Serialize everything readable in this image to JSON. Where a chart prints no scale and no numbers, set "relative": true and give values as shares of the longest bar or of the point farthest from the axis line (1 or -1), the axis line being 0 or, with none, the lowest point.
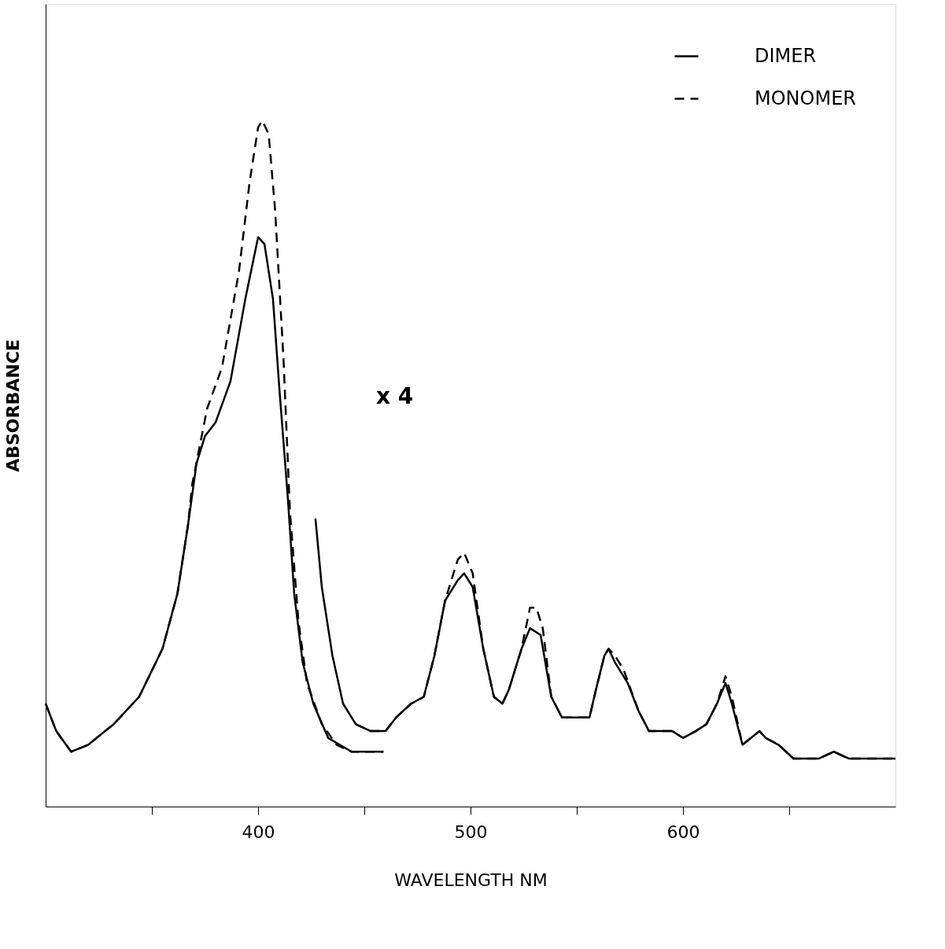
{
  "chart_data": {
    "type": "line",
    "relative": true,
    "xlabel": "WAVELENGTH NM",
    "ylabel": "ABSORBANCE",
    "xlim": [
      300,
      700
    ],
    "xticks": [
      {
        "value": 350,
        "label": null
      },
      400,
      {
        "value": 450,
        "label": null
      },
      500,
      {
        "value": 550,
        "label": null
      },
      600,
      {
        "value": 650,
        "label": null
      }
    ],
    "grid": false,
    "legend": "top right",
    "marker": "none",
    "annotations": [
      "x 4"
    ],
    "series": [
      {
        "name": "DIMER",
        "color": "#000000",
        "line_style": "solid",
        "x": [
          300,
          305,
          312,
          320,
          332,
          344,
          355,
          362,
          367,
          371,
          375,
          380,
          387,
          394,
          400,
          403,
          407,
          410,
          414,
          417,
          421,
          426,
          433,
          444,
          459
        ],
        "values": [
          0.15,
          0.11,
          0.08,
          0.09,
          0.12,
          0.16,
          0.23,
          0.31,
          0.41,
          0.5,
          0.54,
          0.56,
          0.62,
          0.74,
          0.83,
          0.82,
          0.74,
          0.61,
          0.45,
          0.31,
          0.21,
          0.15,
          0.1,
          0.08,
          0.08
        ]
      },
      {
        "name": "MONOMER",
        "color": "#000000",
        "line_style": "dashed",
        "x": [
          300,
          305,
          312,
          320,
          332,
          344,
          355,
          362,
          367,
          369,
          376,
          383,
          391,
          396,
          400,
          402,
          405,
          408,
          412,
          415,
          419,
          423,
          430,
          437,
          444,
          459
        ],
        "values": [
          0.15,
          0.11,
          0.08,
          0.09,
          0.12,
          0.16,
          0.23,
          0.31,
          0.41,
          0.47,
          0.58,
          0.64,
          0.78,
          0.91,
          0.99,
          1.0,
          0.98,
          0.87,
          0.65,
          0.43,
          0.27,
          0.18,
          0.12,
          0.09,
          0.08,
          0.08
        ]
      },
      {
        "color": "#000000",
        "line_style": "solid",
        "x": [
          427,
          430,
          435,
          440,
          446,
          453,
          460,
          465,
          472,
          478,
          483,
          488,
          494,
          497,
          501,
          506,
          511,
          515,
          518,
          524,
          528,
          533,
          538,
          543,
          549,
          552,
          556,
          559,
          563,
          565,
          568,
          574,
          579,
          584,
          590,
          595,
          600,
          606,
          611,
          616,
          620,
          623,
          628,
          632,
          636,
          639,
          645,
          652,
          659,
          664,
          671,
          678,
          685,
          700
        ],
        "values": [
          0.42,
          0.32,
          0.22,
          0.15,
          0.12,
          0.11,
          0.11,
          0.13,
          0.15,
          0.16,
          0.22,
          0.3,
          0.33,
          0.34,
          0.32,
          0.23,
          0.16,
          0.15,
          0.17,
          0.23,
          0.26,
          0.25,
          0.16,
          0.13,
          0.13,
          0.13,
          0.13,
          0.17,
          0.22,
          0.23,
          0.21,
          0.18,
          0.14,
          0.11,
          0.11,
          0.11,
          0.1,
          0.11,
          0.12,
          0.15,
          0.18,
          0.15,
          0.09,
          0.1,
          0.11,
          0.1,
          0.09,
          0.07,
          0.07,
          0.07,
          0.08,
          0.07,
          0.07,
          0.07
        ]
      },
      {
        "color": "#000000",
        "line_style": "dashed",
        "x": [
          446,
          453,
          460,
          465,
          472,
          478,
          483,
          488,
          494,
          497,
          501,
          506,
          511,
          515,
          518,
          524,
          528,
          531,
          534,
          538,
          543,
          549,
          552,
          556,
          559,
          563,
          565,
          568,
          572,
          579,
          584,
          590,
          595,
          600,
          606,
          611,
          616,
          620,
          623,
          628,
          632,
          636,
          639,
          645,
          652,
          659,
          664,
          671,
          678,
          685,
          700
        ],
        "values": [
          0.12,
          0.11,
          0.11,
          0.13,
          0.15,
          0.16,
          0.22,
          0.3,
          0.36,
          0.37,
          0.34,
          0.23,
          0.16,
          0.15,
          0.17,
          0.23,
          0.29,
          0.29,
          0.26,
          0.16,
          0.13,
          0.13,
          0.13,
          0.13,
          0.17,
          0.22,
          0.23,
          0.22,
          0.2,
          0.14,
          0.11,
          0.11,
          0.11,
          0.1,
          0.11,
          0.12,
          0.15,
          0.19,
          0.16,
          0.09,
          0.1,
          0.11,
          0.1,
          0.09,
          0.07,
          0.07,
          0.07,
          0.08,
          0.07,
          0.07,
          0.07
        ]
      }
    ]
  }
}
